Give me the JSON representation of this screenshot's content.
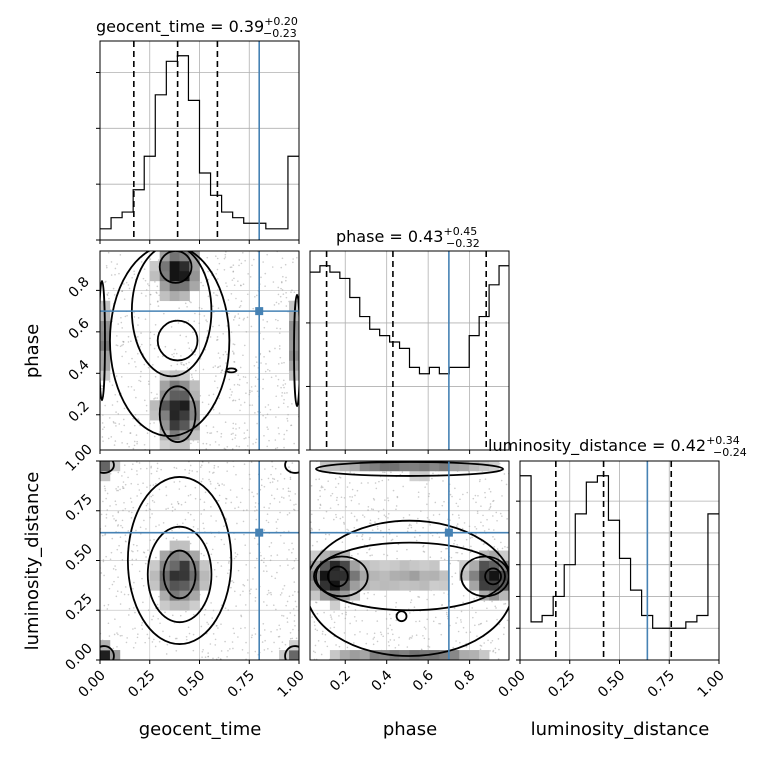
{
  "chart_data": {
    "type": "corner",
    "parameters": [
      "geocent_time",
      "phase",
      "luminosity_distance"
    ],
    "truths": [
      0.8,
      0.7,
      0.64
    ],
    "truth_color": "#4682b4",
    "contour_color": "#000000",
    "titles": [
      {
        "param": "geocent_time",
        "text": "geocent_time = 0.39",
        "plus": "+0.20",
        "minus": "−0.23"
      },
      {
        "param": "phase",
        "text": "phase = 0.43",
        "plus": "+0.45",
        "minus": "−0.32"
      },
      {
        "param": "luminosity_distance",
        "text": "luminosity_distance = 0.42",
        "plus": "+0.34",
        "minus": "−0.24"
      }
    ],
    "ranges": {
      "geocent_time": [
        0.0,
        1.0
      ],
      "phase": [
        0.03,
        0.99
      ],
      "luminosity_distance": [
        0.0,
        1.0
      ]
    },
    "ticks": {
      "geocent_time": {
        "values": [
          0.0,
          0.25,
          0.5,
          0.75,
          1.0
        ],
        "labels": [
          "0.00",
          "0.25",
          "0.50",
          "0.75",
          "1.00"
        ]
      },
      "phase": {
        "values": [
          0.2,
          0.4,
          0.6,
          0.8
        ],
        "labels": [
          "0.2",
          "0.4",
          "0.6",
          "0.8"
        ]
      },
      "luminosity_distance": {
        "values": [
          0.0,
          0.25,
          0.5,
          0.75,
          1.0
        ],
        "labels": [
          "0.00",
          "0.25",
          "0.50",
          "0.75",
          "1.00"
        ]
      }
    },
    "histograms": [
      {
        "param": "geocent_time",
        "bin_edges_range": [
          0.0,
          1.0
        ],
        "counts": [
          2,
          4,
          5,
          9,
          15,
          26,
          32,
          33,
          25,
          12,
          8,
          5,
          4,
          3,
          3,
          2,
          2,
          15
        ],
        "quantiles": [
          0.17,
          0.39,
          0.59
        ]
      },
      {
        "param": "phase",
        "bin_edges_range": [
          0.03,
          0.99
        ],
        "counts": [
          28,
          29,
          28,
          27,
          24,
          21,
          19,
          18,
          17,
          16,
          13,
          12,
          13,
          12,
          13,
          13,
          18,
          21,
          26,
          29
        ],
        "quantiles": [
          0.11,
          0.43,
          0.88
        ]
      },
      {
        "param": "luminosity_distance",
        "bin_edges_range": [
          0.0,
          1.0
        ],
        "counts": [
          29,
          6,
          7,
          10,
          15,
          23,
          28,
          29,
          22,
          16,
          11,
          7,
          5,
          5,
          5,
          6,
          7,
          23
        ],
        "quantiles": [
          0.18,
          0.42,
          0.76
        ]
      }
    ],
    "hist_yticks": {
      "geocent_time": [
        0,
        10,
        20,
        30
      ],
      "phase": [
        0,
        10,
        20
      ],
      "luminosity_distance": [
        0,
        5,
        10,
        15,
        20,
        25
      ]
    }
  }
}
